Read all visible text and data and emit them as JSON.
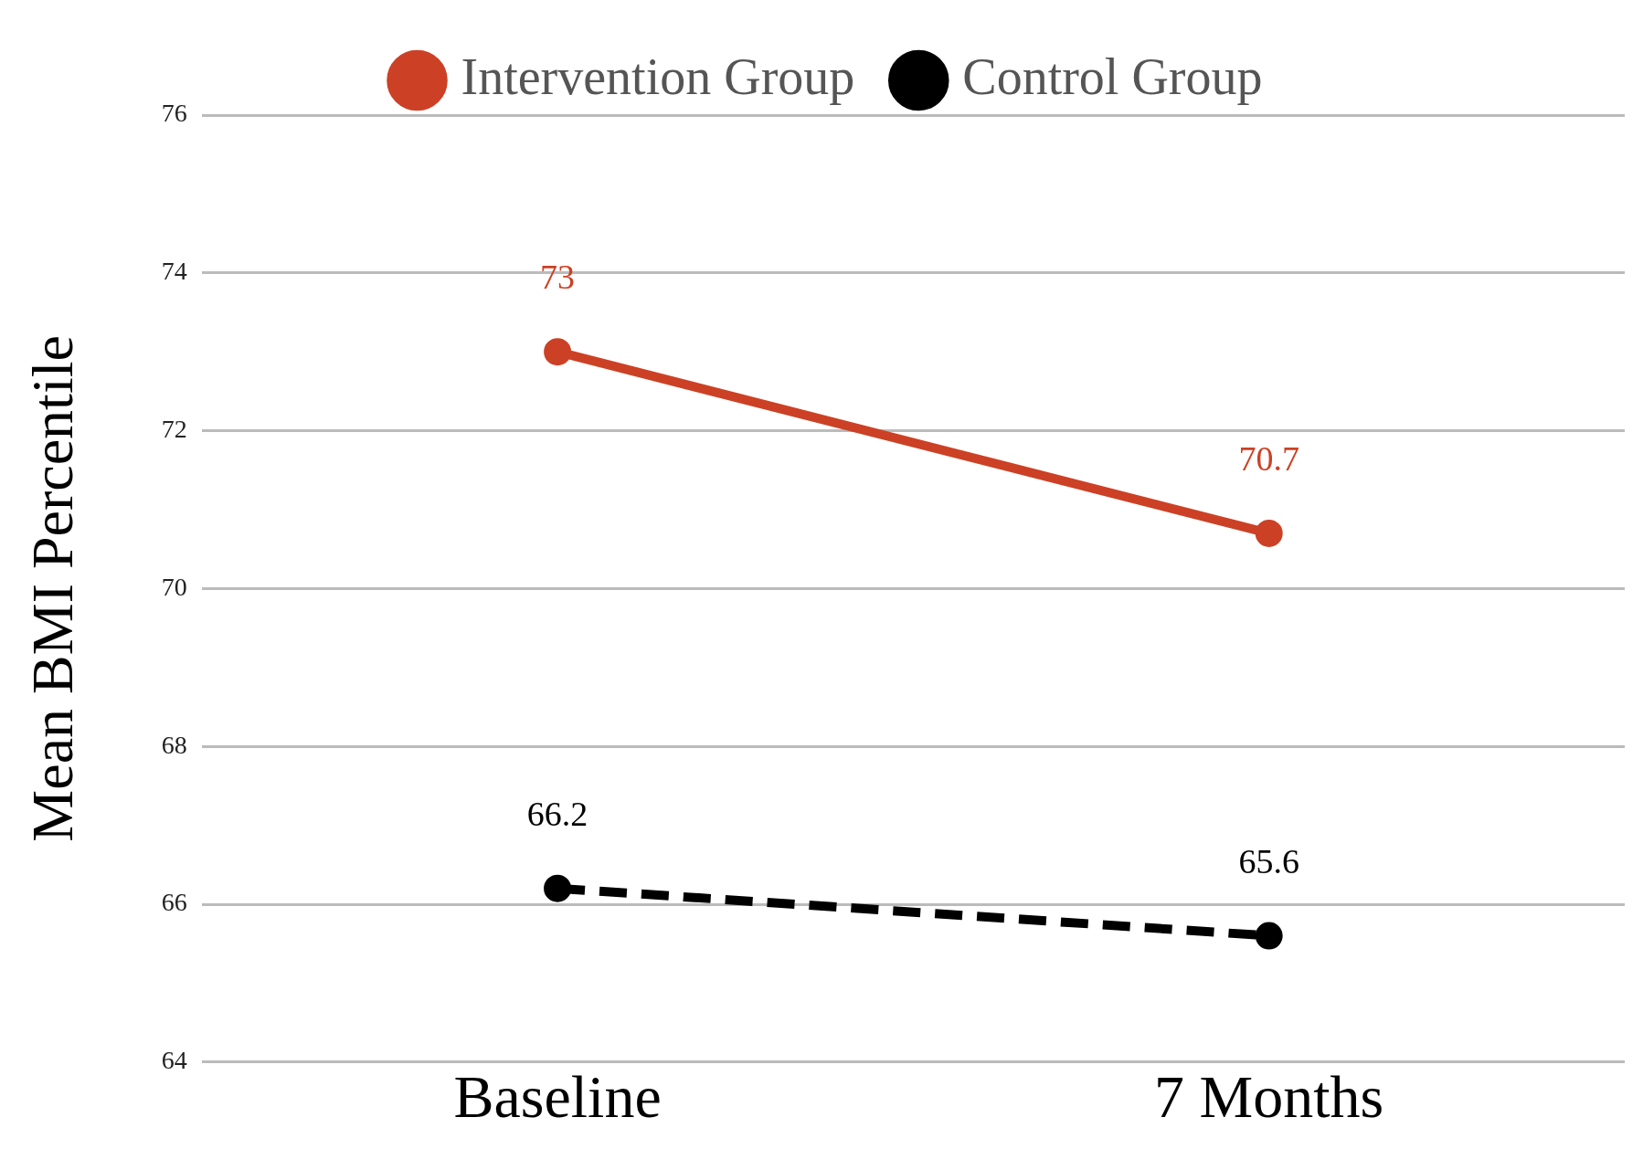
{
  "chart_data": {
    "type": "line",
    "ylabel": "Mean BMI Percentile",
    "categories": [
      "Baseline",
      "7 Months"
    ],
    "series": [
      {
        "name": "Intervention Group",
        "color": "#cc4125",
        "values": [
          73,
          70.7
        ],
        "line_style": "solid"
      },
      {
        "name": "Control Group",
        "color": "#000000",
        "values": [
          66.2,
          65.6
        ],
        "line_style": "dashed"
      }
    ],
    "ylim": [
      64,
      76
    ],
    "yticks": [
      64,
      66,
      68,
      70,
      72,
      74,
      76
    ],
    "grid": "y",
    "legend": "top",
    "marker": "circle",
    "data_labels": true
  }
}
